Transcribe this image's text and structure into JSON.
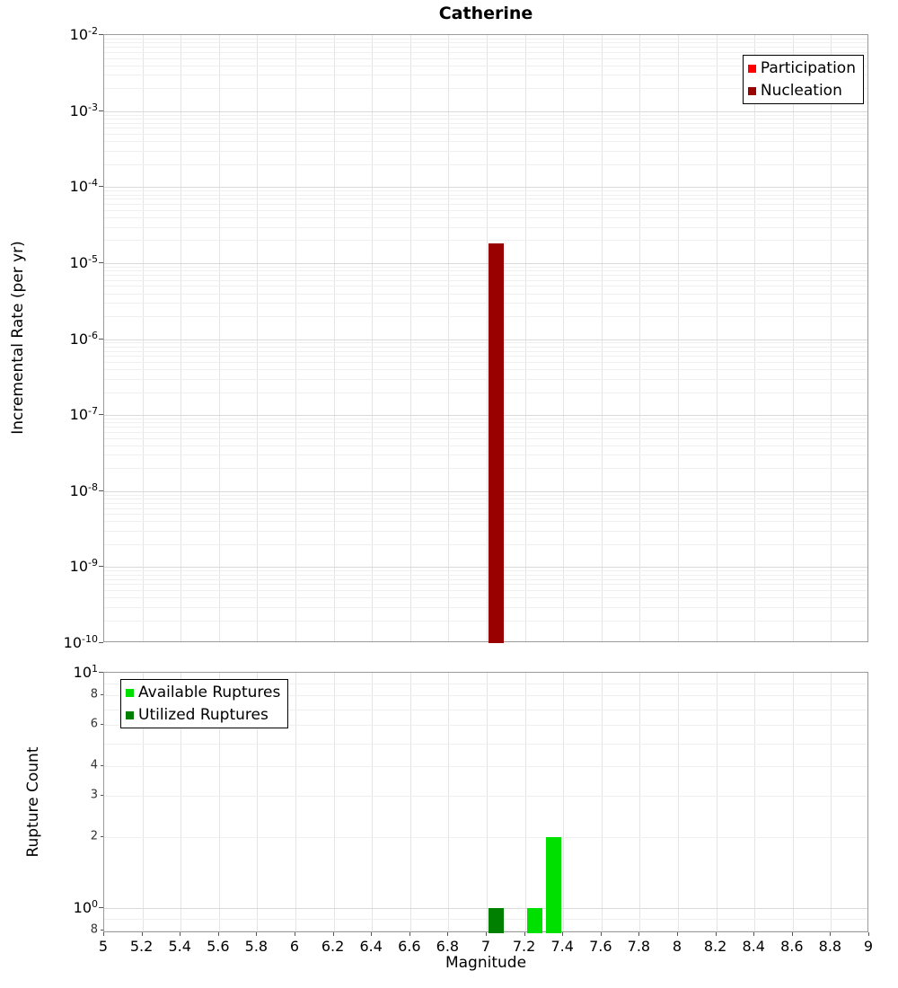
{
  "title": "Catherine",
  "chart_data": [
    {
      "type": "bar",
      "title": "Catherine",
      "xlabel": "Magnitude",
      "ylabel": "Incremental Rate (per yr)",
      "yscale": "log",
      "xscale": "linear",
      "xlim": [
        5,
        9
      ],
      "ylim": [
        1e-10,
        0.01
      ],
      "x_grid_step": 0.2,
      "bin_width": 0.1,
      "grid": true,
      "legend_position": "top-right",
      "legend": [
        {
          "label": "Participation",
          "color": "#FF0000"
        },
        {
          "label": "Nucleation",
          "color": "#990000"
        }
      ],
      "y_ticks": [
        {
          "value": 0.01,
          "base": "10",
          "exp": "-2",
          "major": true
        },
        {
          "value": 0.001,
          "base": "10",
          "exp": "-3",
          "major": true
        },
        {
          "value": 0.0001,
          "base": "10",
          "exp": "-4",
          "major": true
        },
        {
          "value": 1e-05,
          "base": "10",
          "exp": "-5",
          "major": true
        },
        {
          "value": 1e-06,
          "base": "10",
          "exp": "-6",
          "major": true
        },
        {
          "value": 1e-07,
          "base": "10",
          "exp": "-7",
          "major": true
        },
        {
          "value": 1e-08,
          "base": "10",
          "exp": "-8",
          "major": true
        },
        {
          "value": 1e-09,
          "base": "10",
          "exp": "-9",
          "major": true
        },
        {
          "value": 1e-10,
          "base": "10",
          "exp": "-10",
          "major": true
        }
      ],
      "series": [
        {
          "name": "Participation",
          "color": "#FF0000",
          "points": [
            {
              "x": 7.05,
              "y": 1.8e-05
            }
          ]
        },
        {
          "name": "Nucleation",
          "color": "#990000",
          "points": [
            {
              "x": 7.05,
              "y": 1.8e-05
            }
          ]
        }
      ]
    },
    {
      "type": "bar",
      "title": "",
      "xlabel": "Magnitude",
      "ylabel": "Rupture Count",
      "yscale": "log",
      "xscale": "linear",
      "xlim": [
        5,
        9
      ],
      "ylim": [
        0.78,
        10
      ],
      "x_grid_step": 0.2,
      "bin_width": 0.1,
      "grid": true,
      "legend_position": "top-left",
      "legend": [
        {
          "label": "Available Ruptures",
          "color": "#00E000"
        },
        {
          "label": "Utilized Ruptures",
          "color": "#008000"
        }
      ],
      "y_ticks": [
        {
          "value": 10,
          "base": "10",
          "exp": "1",
          "major": true
        },
        {
          "value": 8,
          "base": "8",
          "major": false
        },
        {
          "value": 6,
          "base": "6",
          "major": false
        },
        {
          "value": 4,
          "base": "4",
          "major": false
        },
        {
          "value": 3,
          "base": "3",
          "major": false
        },
        {
          "value": 2,
          "base": "2",
          "major": false
        },
        {
          "value": 1,
          "base": "10",
          "exp": "0",
          "major": true
        },
        {
          "value": 0.8,
          "base": "8",
          "major": false
        }
      ],
      "series": [
        {
          "name": "Available Ruptures",
          "color": "#00E000",
          "points": [
            {
              "x": 7.05,
              "y": 1
            },
            {
              "x": 7.25,
              "y": 1
            },
            {
              "x": 7.35,
              "y": 2
            }
          ]
        },
        {
          "name": "Utilized Ruptures",
          "color": "#008000",
          "points": [
            {
              "x": 7.05,
              "y": 1
            }
          ]
        }
      ]
    }
  ],
  "x_ticks": [
    {
      "value": 5,
      "label": "5"
    },
    {
      "value": 5.2,
      "label": "5.2"
    },
    {
      "value": 5.4,
      "label": "5.4"
    },
    {
      "value": 5.6,
      "label": "5.6"
    },
    {
      "value": 5.8,
      "label": "5.8"
    },
    {
      "value": 6,
      "label": "6"
    },
    {
      "value": 6.2,
      "label": "6.2"
    },
    {
      "value": 6.4,
      "label": "6.4"
    },
    {
      "value": 6.6,
      "label": "6.6"
    },
    {
      "value": 6.8,
      "label": "6.8"
    },
    {
      "value": 7,
      "label": "7"
    },
    {
      "value": 7.2,
      "label": "7.2"
    },
    {
      "value": 7.4,
      "label": "7.4"
    },
    {
      "value": 7.6,
      "label": "7.6"
    },
    {
      "value": 7.8,
      "label": "7.8"
    },
    {
      "value": 8,
      "label": "8"
    },
    {
      "value": 8.2,
      "label": "8.2"
    },
    {
      "value": 8.4,
      "label": "8.4"
    },
    {
      "value": 8.6,
      "label": "8.6"
    },
    {
      "value": 8.8,
      "label": "8.8"
    },
    {
      "value": 9,
      "label": "9"
    }
  ]
}
